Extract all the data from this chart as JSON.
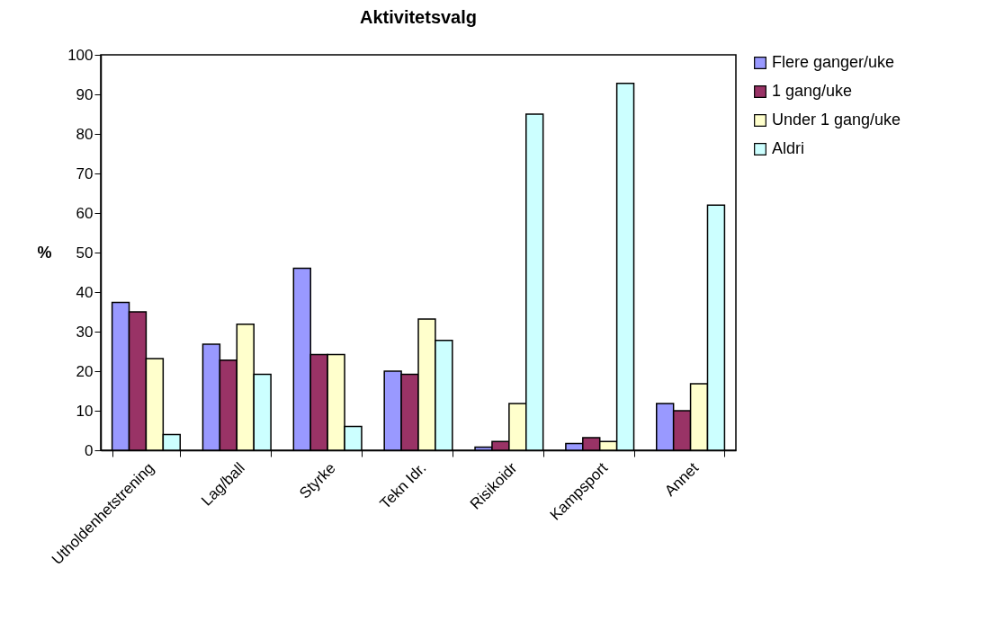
{
  "chart_data": {
    "type": "bar",
    "title": "Aktivitetsvalg",
    "ylabel": "%",
    "categories": [
      "Utholdenhetstrening",
      "Lag/ball",
      "Styrke",
      "Tekn Idr.",
      "Risikoidr",
      "Kampsport",
      "Annet"
    ],
    "series": [
      {
        "name": "Flere ganger/uke",
        "color": "#9999ff",
        "values": [
          37.4,
          26.8,
          46,
          20,
          0.8,
          1.7,
          11.8
        ]
      },
      {
        "name": "1 gang/uke",
        "color": "#993366",
        "values": [
          35,
          22.8,
          24.2,
          19.2,
          2.2,
          3.2,
          10
        ]
      },
      {
        "name": "Under 1 gang/uke",
        "color": "#ffffcc",
        "values": [
          23.2,
          31.9,
          24.2,
          33.2,
          11.8,
          2.2,
          16.8
        ]
      },
      {
        "name": "Aldri",
        "color": "#ccffff",
        "values": [
          4,
          19.2,
          6,
          27.8,
          85,
          92.8,
          62
        ]
      }
    ],
    "ylim": [
      0,
      100
    ],
    "yticks": [
      0,
      10,
      20,
      30,
      40,
      50,
      60,
      70,
      80,
      90,
      100
    ],
    "grid": false,
    "legend": "right"
  }
}
